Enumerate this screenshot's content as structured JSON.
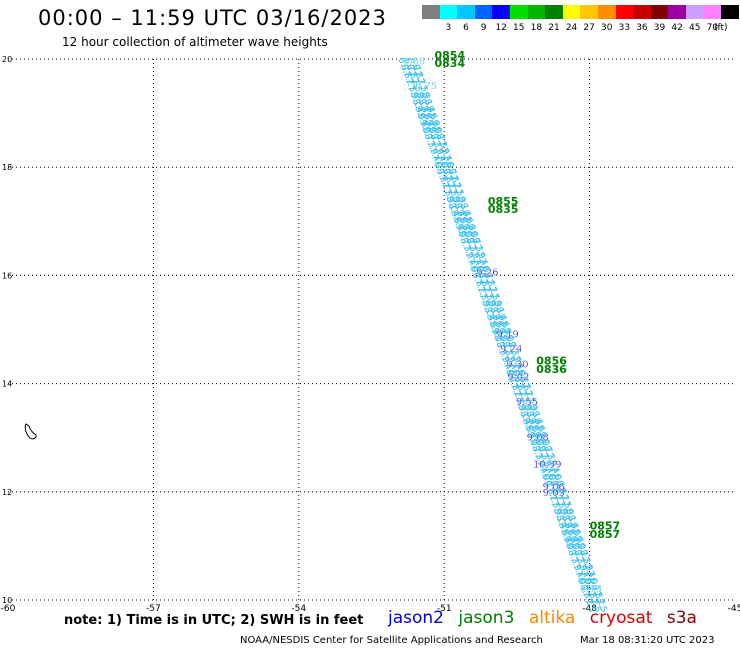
{
  "header": {
    "title": "00:00 – 11:59 UTC 03/16/2023",
    "subtitle": "12 hour collection of altimeter wave heights"
  },
  "colorbar": {
    "unit": "(ft)",
    "entries": [
      {
        "label": "",
        "color": "#808080"
      },
      {
        "label": "3",
        "color": "#00ffff"
      },
      {
        "label": "6",
        "color": "#00c8ff"
      },
      {
        "label": "9",
        "color": "#0064ff"
      },
      {
        "label": "12",
        "color": "#0000ff"
      },
      {
        "label": "15",
        "color": "#00e000"
      },
      {
        "label": "18",
        "color": "#00b400"
      },
      {
        "label": "21",
        "color": "#008000"
      },
      {
        "label": "24",
        "color": "#ffff00"
      },
      {
        "label": "27",
        "color": "#ffc800"
      },
      {
        "label": "30",
        "color": "#ff8c00"
      },
      {
        "label": "33",
        "color": "#ff0000"
      },
      {
        "label": "36",
        "color": "#c80000"
      },
      {
        "label": "39",
        "color": "#800000"
      },
      {
        "label": "42",
        "color": "#a000a0"
      },
      {
        "label": "45",
        "color": "#c8a0ff"
      },
      {
        "label": "70",
        "color": "#ff80ff"
      },
      {
        "label": "",
        "color": "#000000"
      }
    ]
  },
  "map": {
    "lon_range": [
      -60,
      -45
    ],
    "lat_range": [
      10,
      20
    ],
    "lon_ticks": [
      "-60",
      "-57",
      "-54",
      "-51",
      "-48",
      "-45"
    ],
    "lat_ticks": [
      "20",
      "18",
      "16",
      "14",
      "12",
      "10"
    ],
    "track_color": "#33bbee",
    "track_labels": [
      {
        "text": "6.68",
        "lon": -51.85,
        "lat": 19.9,
        "color": "#33bbee"
      },
      {
        "text": "6.75",
        "lon": -51.6,
        "lat": 19.45,
        "color": "#33bbee"
      },
      {
        "text": "9.26",
        "lon": -50.34,
        "lat": 16.0,
        "color": "#0000cc"
      },
      {
        "text": "9.19",
        "lon": -49.92,
        "lat": 14.85,
        "color": "#0000cc"
      },
      {
        "text": "9.24",
        "lon": -49.85,
        "lat": 14.58,
        "color": "#0000cc"
      },
      {
        "text": "9.30",
        "lon": -49.72,
        "lat": 14.3,
        "color": "#0000cc"
      },
      {
        "text": "9.02",
        "lon": -49.7,
        "lat": 14.07,
        "color": "#0000cc"
      },
      {
        "text": "9.55",
        "lon": -49.52,
        "lat": 13.6,
        "color": "#0000cc"
      },
      {
        "text": "9.08",
        "lon": -49.3,
        "lat": 12.95,
        "color": "#0000cc"
      },
      {
        "text": "10.39",
        "lon": -49.17,
        "lat": 12.45,
        "color": "#0000cc"
      },
      {
        "text": "9.06",
        "lon": -48.97,
        "lat": 12.03,
        "color": "#0000cc"
      },
      {
        "text": "9.03",
        "lon": -48.97,
        "lat": 11.92,
        "color": "#0000cc"
      },
      {
        "text": "6.73",
        "lon": -48.2,
        "lat": 10.15,
        "color": "#33bbee"
      }
    ],
    "time_labels": [
      {
        "text": "0854",
        "lon": -51.2,
        "lat": 20.0
      },
      {
        "text": "0834",
        "lon": -51.2,
        "lat": 19.85
      },
      {
        "text": "0855",
        "lon": -50.1,
        "lat": 17.3
      },
      {
        "text": "0835",
        "lon": -50.1,
        "lat": 17.15
      },
      {
        "text": "0856",
        "lon": -49.1,
        "lat": 14.35
      },
      {
        "text": "0836",
        "lon": -49.1,
        "lat": 14.2
      },
      {
        "text": "0857",
        "lon": -48.0,
        "lat": 11.3
      },
      {
        "text": "0857",
        "lon": -48.0,
        "lat": 11.15
      }
    ]
  },
  "footer": {
    "note": "note: 1) Time is in UTC; 2) SWH is in feet",
    "satellites": [
      {
        "name": "jason2",
        "color": "#0000dd"
      },
      {
        "name": "jason3",
        "color": "#008000"
      },
      {
        "name": "altika",
        "color": "#ff8800"
      },
      {
        "name": "cryosat",
        "color": "#dd0000"
      },
      {
        "name": "s3a",
        "color": "#880000"
      }
    ],
    "credit": "NOAA/NESDIS Center for Satellite Applications and Research",
    "timestamp": "Mar 18 08:31:20 UTC 2023"
  }
}
